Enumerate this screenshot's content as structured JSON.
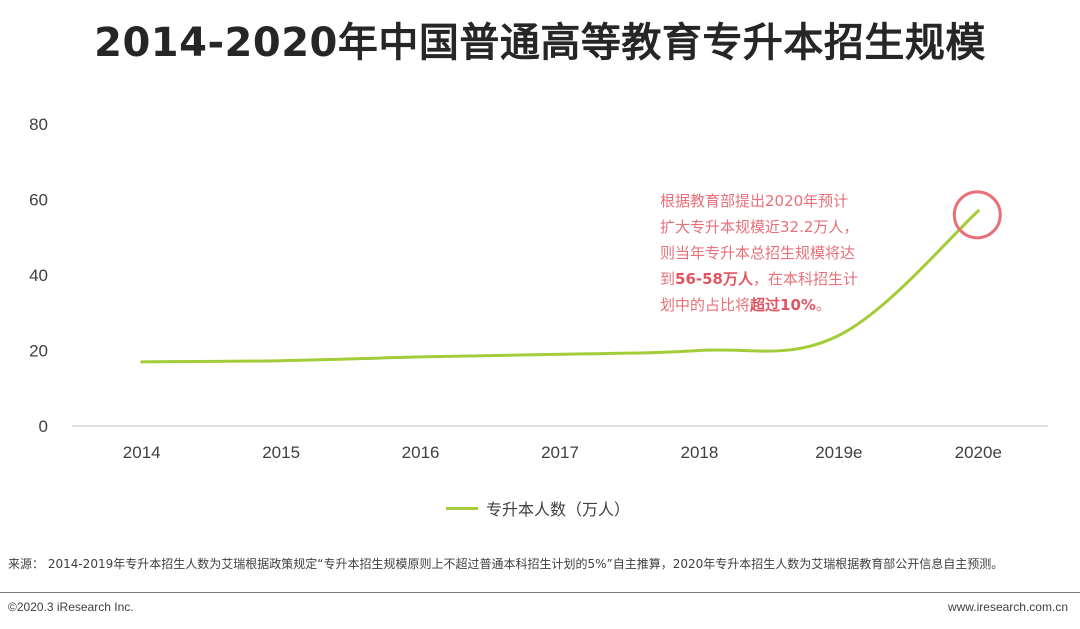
{
  "chart_data": {
    "type": "line",
    "title": "2014-2020年中国普通高等教育专升本招生规模",
    "categories": [
      "2014",
      "2015",
      "2016",
      "2017",
      "2018",
      "2019e",
      "2020e"
    ],
    "series": [
      {
        "name": "专升本人数（万人）",
        "values": [
          17,
          17.3,
          18.3,
          19,
          20,
          24,
          57
        ],
        "color": "#a4cc39"
      }
    ],
    "ylim": [
      0,
      80
    ],
    "yticks": [
      0,
      20,
      40,
      60,
      80
    ],
    "xlabel": "",
    "ylabel": "",
    "grid": false,
    "legend": "bottom-center",
    "highlight": {
      "category": "2020e",
      "value": 57,
      "color": "#e8707a"
    },
    "annotation": {
      "line1": "根据教育部提出2020年预计",
      "line2": "扩大专升本规模近32.2万人，",
      "line3": "则当年专升本总招生规模将达",
      "line4_a": "到",
      "line4_b": "56-58万人",
      "line4_c": "，在本科招生计",
      "line5_a": "划中的占比将",
      "line5_b": "超过10%",
      "line5_c": "。"
    }
  },
  "footer": {
    "source": "来源： 2014-2019年专升本招生人数为艾瑞根据政策规定“专升本招生规模原则上不超过普通本科招生计划的5%”自主推算，2020年专升本招生人数为艾瑞根据教育部公开信息自主预测。",
    "copyright": "©2020.3 iResearch Inc.",
    "website": "www.iresearch.com.cn"
  }
}
